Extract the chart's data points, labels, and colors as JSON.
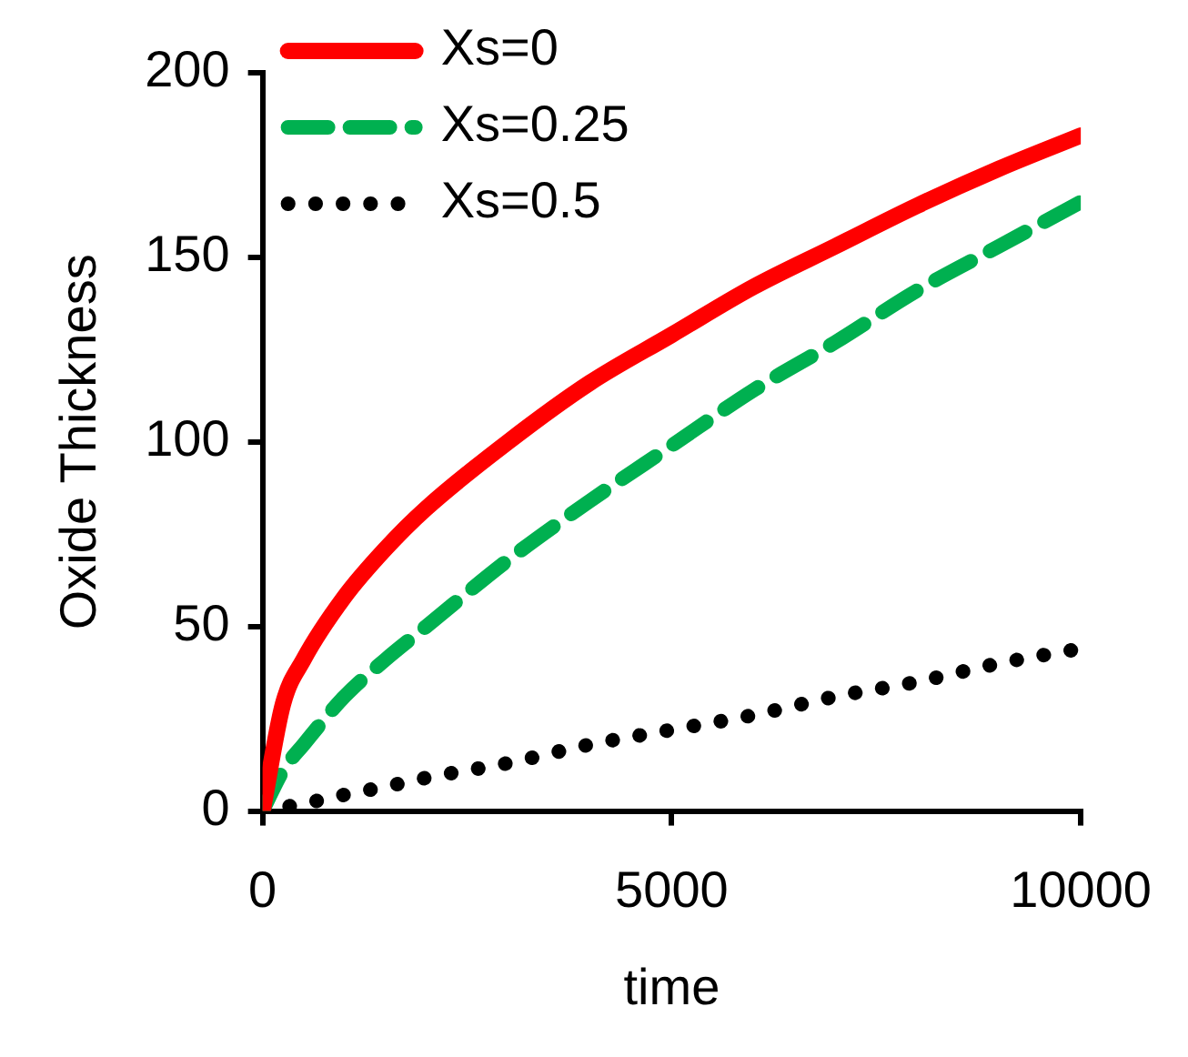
{
  "chart_data": {
    "type": "line",
    "xlabel": "time",
    "ylabel": "Oxide Thickness",
    "x": [
      0,
      250,
      500,
      1000,
      1500,
      2000,
      3000,
      4000,
      5000,
      6000,
      7000,
      8000,
      9000,
      10000
    ],
    "series": [
      {
        "name": "Xs=0",
        "color": "#ff0000",
        "line_style": "solid",
        "values": [
          0,
          29,
          41,
          58,
          71,
          82,
          100,
          116,
          129,
          142,
          153,
          164,
          174,
          183
        ]
      },
      {
        "name": "Xs=0.25",
        "color": "#00b050",
        "line_style": "dashed",
        "values": [
          0,
          11,
          18,
          31,
          41,
          50,
          68,
          84,
          99,
          114,
          127,
          141,
          153,
          165
        ]
      },
      {
        "name": "Xs=0.5",
        "color": "#000000",
        "line_style": "dotted",
        "values": [
          0,
          1,
          2,
          4.4,
          6.6,
          9,
          13,
          18,
          22,
          26,
          31,
          35,
          40,
          44
        ]
      }
    ],
    "xlim": [
      0,
      10000
    ],
    "xticks": [
      0,
      5000,
      10000
    ],
    "ylim": [
      0,
      200
    ],
    "yticks": [
      0,
      50,
      100,
      150,
      200
    ],
    "grid": false,
    "legend": "top left",
    "marker": "none"
  }
}
